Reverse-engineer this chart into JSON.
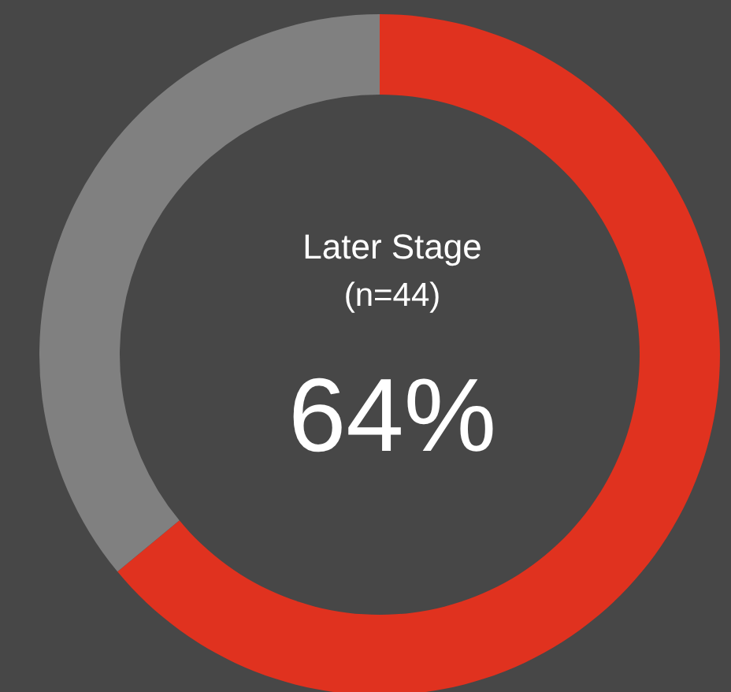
{
  "chart_data": {
    "type": "donut",
    "title": "Later Stage",
    "subtitle": "(n=44)",
    "categories": [
      null,
      null
    ],
    "values": [
      64,
      36
    ],
    "colors": [
      "#e0321f",
      "#808080"
    ],
    "annotations": [
      "64%"
    ]
  }
}
